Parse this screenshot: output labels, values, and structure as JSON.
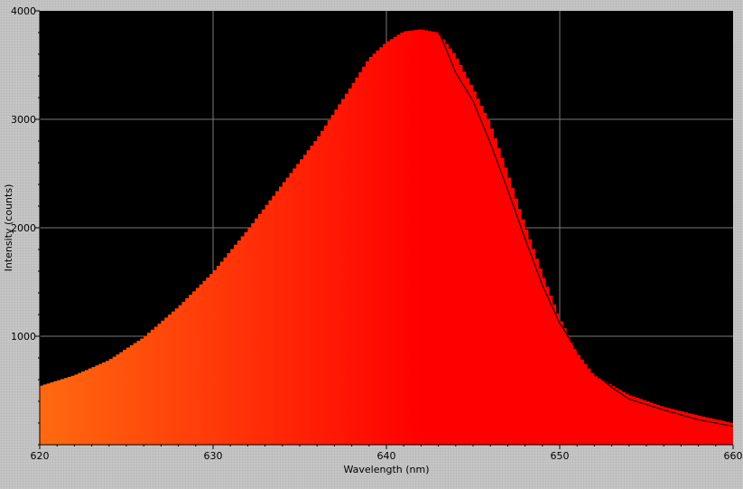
{
  "chart_data": {
    "type": "area",
    "title": "",
    "xlabel": "Wavelength (nm)",
    "ylabel": "Intensity (counts)",
    "xlim": [
      620,
      660
    ],
    "ylim": [
      0,
      4000
    ],
    "x_ticks": [
      "620",
      "630",
      "640",
      "650",
      "660"
    ],
    "y_ticks": [
      "1000",
      "2000",
      "3000",
      "4000"
    ],
    "grid": true,
    "background": "#000000",
    "fill_gradient": [
      "#ff6a10",
      "#ff0000"
    ],
    "overlay_color": "#2a0000",
    "series": [
      {
        "kind": "spectrum-area",
        "x": [
          620,
          622,
          624,
          626,
          628,
          630,
          632,
          634,
          636,
          638,
          639,
          640,
          641,
          642,
          643,
          644,
          645,
          646,
          647,
          648,
          649,
          650,
          651,
          652,
          654,
          656,
          658,
          660
        ],
        "values": [
          540,
          640,
          780,
          990,
          1270,
          1590,
          1980,
          2400,
          2820,
          3310,
          3560,
          3710,
          3810,
          3830,
          3800,
          3590,
          3290,
          2960,
          2510,
          2030,
          1580,
          1170,
          850,
          640,
          460,
          350,
          270,
          200
        ]
      },
      {
        "kind": "fit-line",
        "x": [
          642,
          643,
          644,
          645,
          646,
          647,
          648,
          649,
          650,
          651,
          652,
          653,
          654,
          656,
          658,
          660
        ],
        "values": [
          3840,
          3820,
          3430,
          3170,
          2780,
          2350,
          1900,
          1470,
          1120,
          870,
          660,
          530,
          420,
          320,
          230,
          170
        ]
      }
    ]
  }
}
